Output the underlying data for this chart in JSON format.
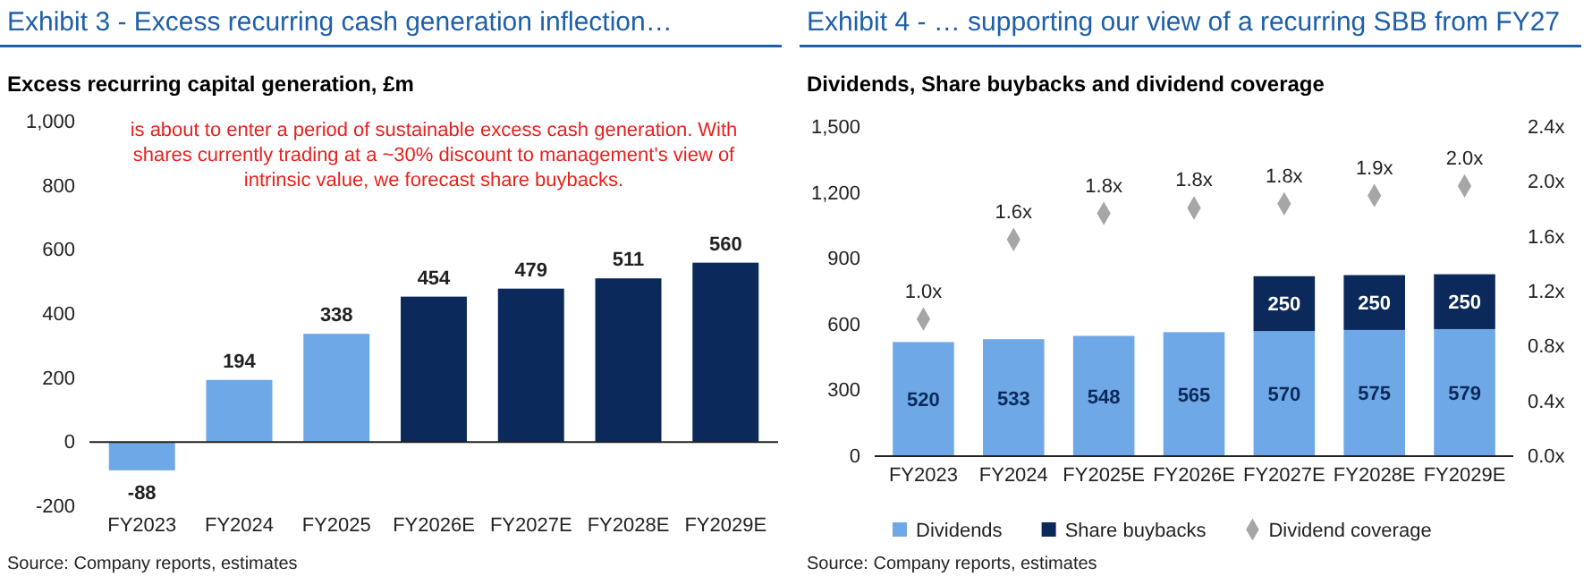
{
  "chart_data": [
    {
      "type": "bar",
      "title": "Exhibit 3 - Excess recurring cash generation inflection…",
      "subtitle": "Excess recurring capital generation, £m",
      "categories": [
        "FY2023",
        "FY2024",
        "FY2025",
        "FY2026E",
        "FY2027E",
        "FY2028E",
        "FY2029E"
      ],
      "values": [
        -88,
        194,
        338,
        454,
        479,
        511,
        560
      ],
      "colors": [
        "#6fa8e6",
        "#6fa8e6",
        "#6fa8e6",
        "#0b2a5b",
        "#0b2a5b",
        "#0b2a5b",
        "#0b2a5b"
      ],
      "ylim": [
        -200,
        1000
      ],
      "yticks": [
        -200,
        0,
        200,
        400,
        600,
        800,
        {
          "value": 1000,
          "label": "1,000"
        }
      ],
      "data_labels": true,
      "annotations": [
        "is about to enter a period of sustainable excess cash generation. With shares currently trading at a ~30% discount to management's view of intrinsic value, we forecast share buybacks.",
        "Source: Company reports, estimates"
      ]
    },
    {
      "type": "bar",
      "title": "Exhibit 4 - … supporting our view of a recurring SBB from FY27",
      "subtitle": "Dividends, Share buybacks and dividend coverage",
      "categories": [
        "FY2023",
        "FY2024",
        "FY2025E",
        "FY2026E",
        "FY2027E",
        "FY2028E",
        "FY2029E"
      ],
      "stacked": true,
      "series": [
        {
          "name": "Dividends",
          "color": "#6fa8e6",
          "values": [
            520,
            533,
            548,
            565,
            570,
            575,
            579
          ]
        },
        {
          "name": "Share buybacks",
          "color": "#0b2a5b",
          "values": [
            null,
            null,
            null,
            null,
            250,
            250,
            250
          ]
        },
        {
          "name": "Dividend coverage",
          "type": "scatter",
          "axis": "y2",
          "color": "#a6a6a6",
          "values": [
            1.0,
            1.58,
            1.77,
            1.81,
            1.84,
            1.9,
            1.97
          ],
          "value_labels": [
            "1.0x",
            "1.6x",
            "1.8x",
            "1.8x",
            "1.8x",
            "1.9x",
            "2.0x"
          ]
        }
      ],
      "marker": "diamond",
      "ylim": [
        0,
        1500
      ],
      "yticks": [
        0,
        300,
        600,
        900,
        {
          "value": 1200,
          "label": "1,200"
        },
        {
          "value": 1500,
          "label": "1,500"
        }
      ],
      "y2lim": [
        0,
        2.4
      ],
      "y2ticks": [
        {
          "value": 0,
          "label": "0.0x"
        },
        {
          "value": 0.4,
          "label": "0.4x"
        },
        {
          "value": 0.8,
          "label": "0.8x"
        },
        {
          "value": 1.2,
          "label": "1.2x"
        },
        {
          "value": 1.6,
          "label": "1.6x"
        },
        {
          "value": 2.0,
          "label": "2.0x"
        },
        {
          "value": 2.4,
          "label": "2.4x"
        }
      ],
      "data_labels": true,
      "legend": "bottom",
      "annotations": [
        "Source: Company reports, estimates"
      ]
    }
  ]
}
